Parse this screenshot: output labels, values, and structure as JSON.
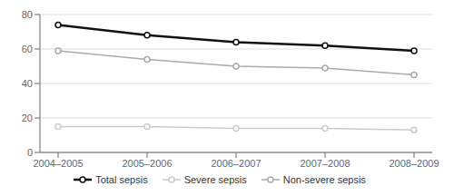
{
  "chart_data": {
    "type": "line",
    "categories": [
      "2004–2005",
      "2005–2006",
      "2006–2007",
      "2007–2008",
      "2008–2009"
    ],
    "series": [
      {
        "name": "Total sepsis",
        "color": "#111111",
        "values": [
          74,
          68,
          64,
          62,
          59
        ]
      },
      {
        "name": "Severe sepsis",
        "color": "#cccccc",
        "values": [
          15,
          15,
          14,
          14,
          13
        ]
      },
      {
        "name": "Non-severe sepsis",
        "color": "#aaaaaa",
        "values": [
          59,
          54,
          50,
          49,
          45
        ]
      }
    ],
    "ylim": [
      0,
      80
    ],
    "yticks": [
      0,
      20,
      40,
      60,
      80
    ],
    "grid": true,
    "legend": "bottom",
    "marker": "circle"
  }
}
